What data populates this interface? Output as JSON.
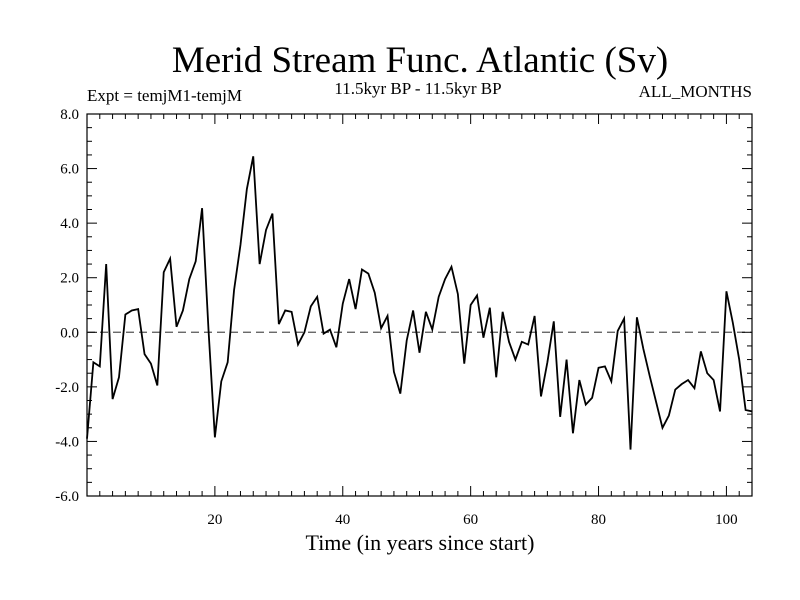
{
  "chart_data": {
    "type": "line",
    "title": "Merid Stream Func. Atlantic (Sv)",
    "subtitle_left": "Expt = temjM1-temjM",
    "subtitle_center": "11.5kyr BP - 11.5kyr BP",
    "subtitle_right": "ALL_MONTHS",
    "xlabel": "Time (in years since start)",
    "ylabel": "",
    "xlim": [
      0,
      104
    ],
    "ylim": [
      -6,
      8
    ],
    "xticks": [
      20,
      40,
      60,
      80,
      100
    ],
    "xtick_labels": [
      "20",
      "40",
      "60",
      "80",
      "100"
    ],
    "yticks": [
      -6,
      -4,
      -2,
      0,
      2,
      4,
      6,
      8
    ],
    "ytick_labels": [
      "-6.0",
      "-4.0",
      "-2.0",
      "0.0",
      "2.0",
      "4.0",
      "6.0",
      "8.0"
    ],
    "reference_line": {
      "y": 0,
      "style": "dashed",
      "color": "#555555"
    },
    "series": [
      {
        "name": "Merid Stream Func. Atlantic",
        "color": "#000000",
        "x": [
          0,
          1,
          2,
          3,
          4,
          5,
          6,
          7,
          8,
          9,
          10,
          11,
          12,
          13,
          14,
          15,
          16,
          17,
          18,
          19,
          20,
          21,
          22,
          23,
          24,
          25,
          26,
          27,
          28,
          29,
          30,
          31,
          32,
          33,
          34,
          35,
          36,
          37,
          38,
          39,
          40,
          41,
          42,
          43,
          44,
          45,
          46,
          47,
          48,
          49,
          50,
          51,
          52,
          53,
          54,
          55,
          56,
          57,
          58,
          59,
          60,
          61,
          62,
          63,
          64,
          65,
          66,
          67,
          68,
          69,
          70,
          71,
          72,
          73,
          74,
          75,
          76,
          77,
          78,
          79,
          80,
          81,
          82,
          83,
          84,
          85,
          86,
          87,
          88,
          89,
          90,
          91,
          92,
          93,
          94,
          95,
          96,
          97,
          98,
          99,
          100,
          101,
          102,
          103,
          104
        ],
        "y": [
          -3.9,
          -1.1,
          -1.25,
          2.5,
          -2.45,
          -1.65,
          0.65,
          0.8,
          0.85,
          -0.8,
          -1.15,
          -1.95,
          2.2,
          2.7,
          0.2,
          0.8,
          1.95,
          2.6,
          4.55,
          0.1,
          -3.85,
          -1.8,
          -1.1,
          1.55,
          3.2,
          5.25,
          6.45,
          2.5,
          3.75,
          4.35,
          0.3,
          0.8,
          0.75,
          -0.45,
          0.0,
          0.95,
          1.3,
          -0.05,
          0.1,
          -0.55,
          1.05,
          1.95,
          0.85,
          2.3,
          2.15,
          1.45,
          0.15,
          0.6,
          -1.45,
          -2.25,
          -0.3,
          0.8,
          -0.75,
          0.75,
          0.1,
          1.3,
          1.95,
          2.4,
          1.4,
          -1.15,
          1.0,
          1.35,
          -0.2,
          0.9,
          -1.65,
          0.75,
          -0.35,
          -1.0,
          -0.35,
          -0.45,
          0.6,
          -2.35,
          -1.1,
          0.4,
          -3.1,
          -1.0,
          -3.7,
          -1.75,
          -2.65,
          -2.4,
          -1.3,
          -1.25,
          -1.8,
          0.05,
          0.5,
          -4.3,
          0.55,
          -0.6,
          -1.6,
          -2.55,
          -3.5,
          -3.05,
          -2.1,
          -1.9,
          -1.75,
          -2.05,
          -0.7,
          -1.5,
          -1.75,
          -2.9,
          1.5,
          0.35,
          -1.0,
          -2.85,
          -2.9
        ]
      }
    ]
  }
}
